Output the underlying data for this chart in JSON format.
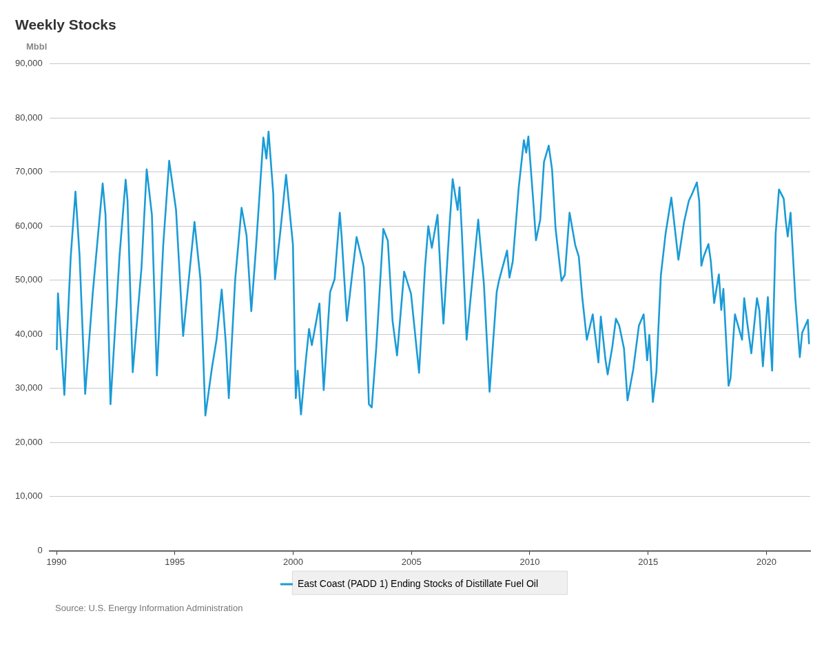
{
  "chart_data": {
    "type": "line",
    "title": "Weekly Stocks",
    "ylabel": "Mbbl",
    "annotations": [
      "Source: U.S. Energy Information Administration"
    ],
    "xlim": [
      1989.7,
      2021.85
    ],
    "xticks": [
      1990,
      1995,
      2000,
      2005,
      2010,
      2015,
      2020
    ],
    "ylim": [
      0,
      90000
    ],
    "yticks": [
      {
        "value": 0,
        "label": "0"
      },
      {
        "value": 10000,
        "label": "10,000"
      },
      {
        "value": 20000,
        "label": "20,000"
      },
      {
        "value": 30000,
        "label": "30,000"
      },
      {
        "value": 40000,
        "label": "40,000"
      },
      {
        "value": 50000,
        "label": "50,000"
      },
      {
        "value": 60000,
        "label": "60,000"
      },
      {
        "value": 70000,
        "label": "70,000"
      },
      {
        "value": 80000,
        "label": "80,000"
      },
      {
        "value": 90000,
        "label": "90,000"
      }
    ],
    "grid": "y",
    "legend": "bottom",
    "marker": "none",
    "line_style": "solid",
    "series": [
      {
        "name": "East Coast (PADD 1) Ending Stocks of Distillate Fuel Oil",
        "color": "#1a9bd7",
        "x": [
          1990.01,
          1990.06,
          1990.33,
          1990.6,
          1990.8,
          1990.97,
          1991.21,
          1991.53,
          1991.95,
          1992.07,
          1992.28,
          1992.66,
          1992.92,
          1993.0,
          1993.22,
          1993.59,
          1993.81,
          1994.03,
          1994.24,
          1994.51,
          1994.76,
          1995.05,
          1995.35,
          1995.83,
          1996.08,
          1996.29,
          1996.57,
          1996.76,
          1996.98,
          1997.15,
          1997.28,
          1997.55,
          1997.82,
          1998.03,
          1998.23,
          1998.43,
          1998.74,
          1998.87,
          1998.96,
          1999.16,
          1999.23,
          1999.45,
          1999.7,
          1999.99,
          2000.11,
          2000.19,
          2000.33,
          2000.53,
          2000.67,
          2000.79,
          2001.11,
          2001.29,
          2001.56,
          2001.75,
          2001.97,
          2002.05,
          2002.27,
          2002.49,
          2002.68,
          2002.98,
          2003.02,
          2003.2,
          2003.32,
          2003.51,
          2003.81,
          2004.0,
          2004.2,
          2004.39,
          2004.69,
          2004.98,
          2005.32,
          2005.57,
          2005.71,
          2005.86,
          2006.1,
          2006.25,
          2006.35,
          2006.59,
          2006.74,
          2006.95,
          2007.03,
          2007.13,
          2007.33,
          2007.57,
          2007.82,
          2008.06,
          2008.3,
          2008.6,
          2008.7,
          2009.04,
          2009.14,
          2009.28,
          2009.53,
          2009.75,
          2009.85,
          2009.94,
          2010.16,
          2010.26,
          2010.44,
          2010.6,
          2010.8,
          2010.94,
          2011.09,
          2011.34,
          2011.48,
          2011.68,
          2011.92,
          2012.07,
          2012.22,
          2012.41,
          2012.66,
          2012.76,
          2012.9,
          2013.0,
          2013.2,
          2013.29,
          2013.49,
          2013.64,
          2013.78,
          2013.98,
          2014.13,
          2014.37,
          2014.61,
          2014.81,
          2014.96,
          2015.05,
          2015.2,
          2015.35,
          2015.54,
          2015.74,
          2015.98,
          2016.28,
          2016.52,
          2016.72,
          2016.86,
          2017.06,
          2017.16,
          2017.25,
          2017.35,
          2017.55,
          2017.65,
          2017.79,
          2017.99,
          2018.09,
          2018.18,
          2018.4,
          2018.48,
          2018.67,
          2018.97,
          2019.06,
          2019.18,
          2019.36,
          2019.6,
          2019.7,
          2019.85,
          2020.06,
          2020.24,
          2020.39,
          2020.53,
          2020.73,
          2020.82,
          2020.9,
          2021.02,
          2021.22,
          2021.41,
          2021.51,
          2021.75,
          2021.8
        ],
        "values": [
          37100,
          47600,
          28800,
          54400,
          66400,
          54800,
          29000,
          47600,
          67900,
          62100,
          27100,
          54400,
          68600,
          64700,
          33000,
          52300,
          70500,
          62100,
          32400,
          56600,
          72100,
          63000,
          39700,
          60800,
          50200,
          25000,
          33900,
          39000,
          48300,
          38600,
          28200,
          50200,
          63400,
          58300,
          44300,
          56100,
          76400,
          72500,
          77500,
          65900,
          50200,
          58700,
          69500,
          56600,
          28200,
          33300,
          25200,
          35000,
          41000,
          38000,
          45700,
          29700,
          47800,
          50200,
          62500,
          58000,
          42500,
          51000,
          58000,
          52500,
          49300,
          27100,
          26500,
          37500,
          59500,
          57300,
          42500,
          36100,
          51600,
          47500,
          32900,
          52300,
          60000,
          56000,
          62100,
          49300,
          42000,
          58900,
          68700,
          63000,
          67200,
          58700,
          39000,
          50000,
          61200,
          49300,
          29400,
          47800,
          50000,
          55500,
          50500,
          53500,
          67100,
          75900,
          73600,
          76600,
          63800,
          57400,
          61200,
          71900,
          74900,
          70500,
          59500,
          49900,
          51000,
          62500,
          56500,
          54400,
          46700,
          39000,
          43700,
          39900,
          34800,
          43300,
          35200,
          32600,
          37800,
          42900,
          41600,
          37400,
          27800,
          33500,
          41600,
          43700,
          35200,
          39900,
          27500,
          33100,
          51000,
          58700,
          65300,
          53800,
          60800,
          64700,
          66000,
          68100,
          64600,
          52700,
          54400,
          56700,
          53500,
          45800,
          51100,
          44500,
          48400,
          30500,
          31800,
          43700,
          39000,
          46700,
          42400,
          36500,
          46700,
          44500,
          34100,
          46900,
          33300,
          58700,
          66800,
          65100,
          60800,
          58100,
          62500,
          46700,
          35800,
          40300,
          42700,
          38200
        ]
      }
    ]
  }
}
